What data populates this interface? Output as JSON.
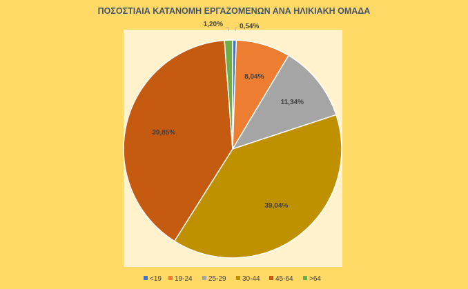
{
  "chart_data": {
    "type": "pie",
    "title": "ΠΟΣΟΣΤΙΑΙΑ ΚΑΤΑΝΟΜΗ ΕΡΓΑΖΟΜΕΝΩΝ ΑΝΑ ΗΛΙΚΙΑΚΗ ΟΜΑΔΑ",
    "categories": [
      "<19",
      "19-24",
      "25-29",
      "30-44",
      "45-64",
      ">64"
    ],
    "values": [
      0.54,
      8.04,
      11.34,
      39.04,
      39.85,
      1.2
    ],
    "data_labels": [
      "0,54%",
      "8,04%",
      "11,34%",
      "39,04%",
      "39,85%",
      "1,20%"
    ],
    "colors": [
      "#4472C4",
      "#ED7D31",
      "#A5A5A5",
      "#BF9000",
      "#C55A11",
      "#70AD47"
    ],
    "legend_position": "bottom",
    "unit": "%"
  }
}
